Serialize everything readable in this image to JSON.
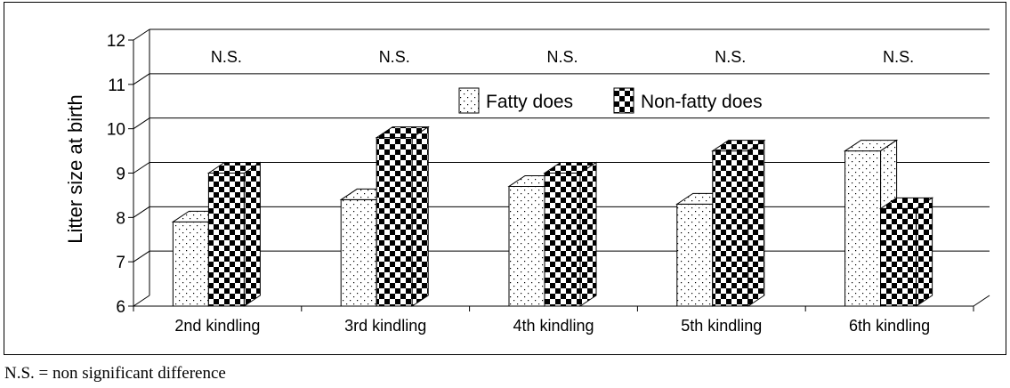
{
  "chart_data": {
    "type": "bar",
    "title": "",
    "xlabel": "",
    "ylabel": "Litter size at birth",
    "ylim": [
      6,
      12
    ],
    "yticks": [
      6,
      7,
      8,
      9,
      10,
      11,
      12
    ],
    "grid": true,
    "legend_position": "top-center",
    "categories": [
      "2nd kindling",
      "3rd kindling",
      "4th kindling",
      "5th kindling",
      "6th kindling"
    ],
    "series": [
      {
        "name": "Fatty does",
        "pattern": "dotted",
        "values": [
          7.9,
          8.4,
          8.7,
          8.3,
          9.5
        ]
      },
      {
        "name": "Non-fatty does",
        "pattern": "checkered",
        "values": [
          9.0,
          9.8,
          9.0,
          9.5,
          8.2
        ]
      }
    ],
    "annotations": [
      "N.S.",
      "N.S.",
      "N.S.",
      "N.S.",
      "N.S."
    ]
  },
  "footnote": "N.S. = non significant difference"
}
